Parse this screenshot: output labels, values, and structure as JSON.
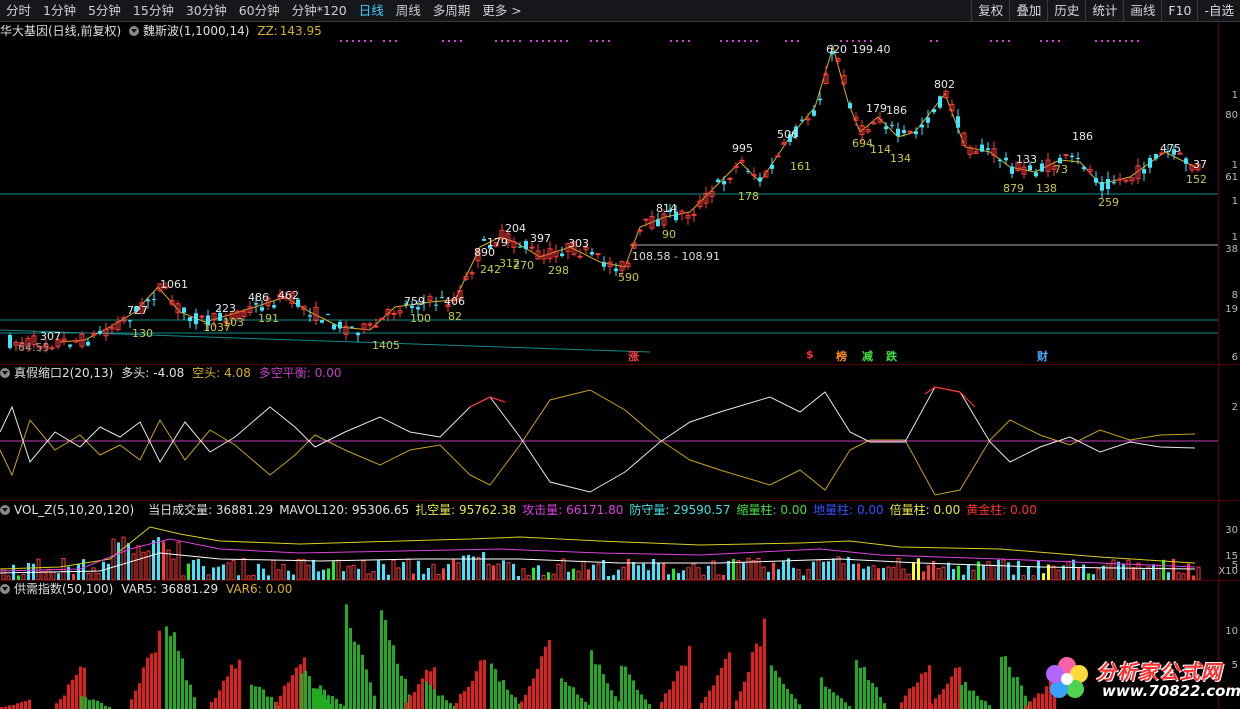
{
  "toolbar": {
    "periods": [
      "分时",
      "1分钟",
      "5分钟",
      "15分钟",
      "30分钟",
      "60分钟",
      "分钟*120",
      "日线",
      "周线",
      "多周期",
      "更多 >"
    ],
    "active_period": "日线",
    "tools": [
      "复权",
      "叠加",
      "历史",
      "统计",
      "画线",
      "F10",
      "-自选"
    ]
  },
  "price_pane": {
    "title": "华大基因(日线,前复权)",
    "indicator": "魏斯波(1,1000,14)",
    "zz_label": "ZZ:",
    "zz_value": "143.95",
    "peak_value": "199.40",
    "range_text": "108.58 - 108.91",
    "low_text": "64.55",
    "peaks": [
      "307",
      "727",
      "1061",
      "223",
      "486",
      "462",
      "759",
      "406",
      "890",
      "179",
      "204",
      "397",
      "303",
      "814",
      "995",
      "506",
      "620",
      "179",
      "186",
      "802",
      "133",
      "186",
      "475",
      "37"
    ],
    "troughs": [
      "130",
      "1037",
      "103",
      "191",
      "1405",
      "100",
      "82",
      "242",
      "312",
      "270",
      "298",
      "590",
      "90",
      "178",
      "161",
      "694",
      "114",
      "134",
      "879",
      "138",
      "73",
      "259",
      "152"
    ],
    "flags": [
      "涨",
      "$",
      "榜",
      "减",
      "跌",
      "财"
    ],
    "axis_labels": [
      "1",
      "80",
      "1",
      "61",
      "1",
      "1",
      "38",
      "8",
      "19",
      "6"
    ]
  },
  "osc_pane": {
    "name": "真假缩口2(20,13)",
    "bull_label": "多头:",
    "bull_value": "-4.08",
    "bear_label": "空头:",
    "bear_value": "4.08",
    "balance_label": "多空平衡:",
    "balance_value": "0.00",
    "axis_labels": [
      "2"
    ]
  },
  "vol_pane": {
    "name": "VOL_Z(5,10,20,120)",
    "items": [
      {
        "label": "当日成交量:",
        "value": "36881.29",
        "color": "#e0e0e0"
      },
      {
        "label": "MAVOL120:",
        "value": "95306.65",
        "color": "#e0e0e0"
      },
      {
        "label": "扎空量:",
        "value": "95762.38",
        "color": "#e8e84a"
      },
      {
        "label": "攻击量:",
        "value": "66171.80",
        "color": "#e040e0"
      },
      {
        "label": "防守量:",
        "value": "29590.57",
        "color": "#40e0e0"
      },
      {
        "label": "缩量柱:",
        "value": "0.00",
        "color": "#40e040"
      },
      {
        "label": "地量柱:",
        "value": "0.00",
        "color": "#3050ff"
      },
      {
        "label": "倍量柱:",
        "value": "0.00",
        "color": "#e8e84a"
      },
      {
        "label": "黄金柱:",
        "value": "0.00",
        "color": "#ff3030"
      }
    ],
    "axis_labels": [
      "30",
      "15",
      "5",
      "X10"
    ]
  },
  "supply_pane": {
    "name": "供需指数(50,100)",
    "var5_label": "VAR5:",
    "var5_value": "36881.29",
    "var6_label": "VAR6:",
    "var6_value": "0.00",
    "axis_labels": [
      "10",
      "5"
    ]
  },
  "watermark": {
    "title": "分析家公式网",
    "url": "www.70822.com"
  },
  "colors": {
    "up": "#ff3a3a",
    "down": "#40e6ff",
    "teal_line": "#0f8a8a",
    "magenta": "#c040c0",
    "yellow": "#d8b21e",
    "green_vol": "#22ee22"
  }
}
